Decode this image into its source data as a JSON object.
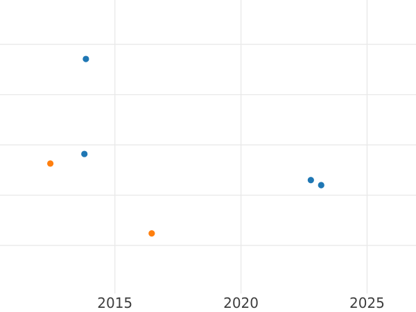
{
  "chart_data": {
    "type": "scatter",
    "title": "",
    "xlabel": "",
    "ylabel": "",
    "grid": true,
    "legend": false,
    "x_ticks": [
      2015,
      2020,
      2025
    ],
    "x_tick_labels": [
      "2015",
      "2020",
      "2025"
    ],
    "xlim": [
      2010.444,
      2026.94
    ],
    "ylim": [
      -0.324,
      5.883
    ],
    "y_gridlines": [
      1,
      2,
      3,
      4,
      5
    ],
    "y_axis": {
      "labels_visible": false,
      "unit": "unlabeled-gridline-units-from-bottom"
    },
    "plot_bottom_unit": 0.044,
    "series": [
      {
        "name": "series-blue",
        "color": "#1f77b4",
        "points": [
          {
            "x": 2013.85,
            "y": 4.71
          },
          {
            "x": 2013.79,
            "y": 2.82
          },
          {
            "x": 2022.77,
            "y": 2.3
          },
          {
            "x": 2023.18,
            "y": 2.2
          }
        ]
      },
      {
        "name": "series-orange",
        "color": "#ff7f0e",
        "points": [
          {
            "x": 2012.44,
            "y": 2.63
          },
          {
            "x": 2016.46,
            "y": 1.24
          }
        ]
      }
    ],
    "style": {
      "background": "#ffffff",
      "grid_color": "#e8e8e8",
      "grid_width": 1.3,
      "marker_radius": 4.6,
      "tick_label_color": "#3d3d3d",
      "tick_label_size": 20
    }
  }
}
